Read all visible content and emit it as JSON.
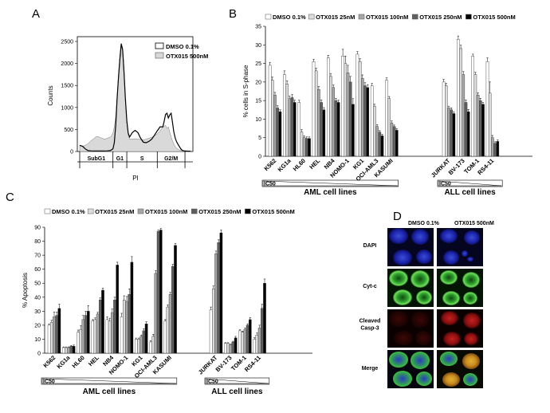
{
  "panels": {
    "a": "A",
    "b": "B",
    "c": "C",
    "d": "D"
  },
  "colors": [
    "#ffffff",
    "#dcdcdc",
    "#a6a6a6",
    "#5f5f5f",
    "#000000"
  ],
  "chart_data": [
    {
      "id": "A",
      "type": "area",
      "ylabel": "Counts",
      "xlabel": "PI",
      "ylim": [
        0,
        2500
      ],
      "yticks": [
        "0",
        "500",
        "1000",
        "1500",
        "2000",
        "2500"
      ],
      "gates": [
        "SubG1",
        "G1",
        "S",
        "G2/M"
      ],
      "series": [
        {
          "name": "DMSO 0.1%",
          "style": "line",
          "points": [
            [
              0,
              140
            ],
            [
              2,
              120
            ],
            [
              4,
              60
            ],
            [
              6,
              20
            ],
            [
              8,
              15
            ],
            [
              12,
              12
            ],
            [
              16,
              12
            ],
            [
              20,
              14
            ],
            [
              22,
              20
            ],
            [
              24,
              60
            ],
            [
              25,
              200
            ],
            [
              26,
              600
            ],
            [
              27,
              1200
            ],
            [
              28,
              1700
            ],
            [
              29,
              2100
            ],
            [
              30,
              2450
            ],
            [
              31,
              2300
            ],
            [
              32,
              1800
            ],
            [
              33,
              1200
            ],
            [
              34,
              700
            ],
            [
              35,
              420
            ],
            [
              36,
              330
            ],
            [
              38,
              430
            ],
            [
              40,
              480
            ],
            [
              42,
              430
            ],
            [
              44,
              300
            ],
            [
              46,
              210
            ],
            [
              48,
              200
            ],
            [
              50,
              230
            ],
            [
              52,
              280
            ],
            [
              54,
              370
            ],
            [
              56,
              470
            ],
            [
              58,
              560
            ],
            [
              60,
              560
            ],
            [
              61,
              690
            ],
            [
              62,
              840
            ],
            [
              63,
              870
            ],
            [
              64,
              760
            ],
            [
              65,
              830
            ],
            [
              66,
              870
            ],
            [
              67,
              660
            ],
            [
              68,
              440
            ],
            [
              69,
              300
            ],
            [
              70,
              220
            ],
            [
              71,
              160
            ],
            [
              72,
              110
            ],
            [
              73,
              60
            ],
            [
              74,
              25
            ],
            [
              76,
              10
            ],
            [
              80,
              5
            ]
          ]
        },
        {
          "name": "OTX015 500nM",
          "style": "fill",
          "points": [
            [
              0,
              130
            ],
            [
              2,
              120
            ],
            [
              4,
              140
            ],
            [
              6,
              180
            ],
            [
              8,
              240
            ],
            [
              10,
              290
            ],
            [
              12,
              340
            ],
            [
              14,
              330
            ],
            [
              16,
              300
            ],
            [
              18,
              280
            ],
            [
              20,
              300
            ],
            [
              22,
              330
            ],
            [
              23,
              360
            ],
            [
              24,
              420
            ],
            [
              25,
              560
            ],
            [
              26,
              800
            ],
            [
              27,
              1250
            ],
            [
              28,
              1750
            ],
            [
              29,
              2200
            ],
            [
              30,
              2450
            ],
            [
              31,
              2350
            ],
            [
              32,
              1900
            ],
            [
              33,
              1200
            ],
            [
              34,
              650
            ],
            [
              35,
              380
            ],
            [
              36,
              280
            ],
            [
              38,
              280
            ],
            [
              40,
              290
            ],
            [
              42,
              280
            ],
            [
              44,
              270
            ],
            [
              46,
              265
            ],
            [
              48,
              280
            ],
            [
              50,
              300
            ],
            [
              52,
              320
            ],
            [
              54,
              360
            ],
            [
              56,
              400
            ],
            [
              58,
              470
            ],
            [
              60,
              560
            ],
            [
              62,
              590
            ],
            [
              63,
              530
            ],
            [
              64,
              560
            ],
            [
              65,
              440
            ],
            [
              66,
              330
            ],
            [
              67,
              240
            ],
            [
              68,
              170
            ],
            [
              69,
              110
            ],
            [
              70,
              70
            ],
            [
              72,
              30
            ],
            [
              74,
              12
            ],
            [
              76,
              6
            ],
            [
              80,
              2
            ]
          ]
        }
      ]
    },
    {
      "id": "B",
      "type": "bar",
      "ylabel": "% cells in S-phase",
      "ylim": [
        0,
        35
      ],
      "yticks": [
        "0",
        "5",
        "10",
        "15",
        "20",
        "25",
        "30",
        "35"
      ],
      "legend": [
        "DMSO 0.1%",
        "OTX015 25nM",
        "OTX015 100nM",
        "OTX015 250nM",
        "OTX015 500nM"
      ],
      "groups": [
        "AML cell lines",
        "ALL cell lines"
      ],
      "ic50": "IC50",
      "categories": [
        "K562",
        "KG1a",
        "HL60",
        "HEL",
        "NB4",
        "NOMO-1",
        "KG1",
        "OCI-AML3",
        "KASUMI",
        "JURKAT",
        "BV-173",
        "TOM-1",
        "RS4-11"
      ],
      "values": [
        [
          24.5,
          20.5,
          16.5,
          13.0,
          12.0
        ],
        [
          22.0,
          19.5,
          15.5,
          15.8,
          14.5
        ],
        [
          14.5,
          6.5,
          5.0,
          4.8,
          4.8
        ],
        [
          25.5,
          23.0,
          18.0,
          14.5,
          12.5
        ],
        [
          26.5,
          21.5,
          18.5,
          15.0,
          14.5
        ],
        [
          27.0,
          25.0,
          22.5,
          20.0,
          14.0
        ],
        [
          27.5,
          25.5,
          21.0,
          19.0,
          18.5
        ],
        [
          19.0,
          13.5,
          8.0,
          6.5,
          5.5
        ],
        [
          20.5,
          15.5,
          9.0,
          8.0,
          7.0
        ],
        [
          20.0,
          19.0,
          13.0,
          12.5,
          11.5
        ],
        [
          31.5,
          29.0,
          22.0,
          14.5,
          12.0
        ],
        [
          27.0,
          22.0,
          16.5,
          15.0,
          14.0
        ],
        [
          25.5,
          17.0,
          5.0,
          3.5,
          4.0
        ]
      ],
      "errors": [
        [
          0.8,
          0.8,
          0.7,
          0.6,
          0.5
        ],
        [
          1.0,
          0.8,
          0.7,
          0.8,
          0.6
        ],
        [
          0.6,
          0.7,
          0.5,
          0.4,
          0.4
        ],
        [
          0.6,
          0.7,
          0.8,
          0.7,
          0.6
        ],
        [
          0.7,
          0.8,
          0.7,
          0.6,
          0.6
        ],
        [
          1.8,
          2.0,
          2.0,
          1.5,
          1.5
        ],
        [
          0.7,
          0.8,
          0.9,
          0.8,
          0.8
        ],
        [
          0.6,
          0.5,
          0.5,
          0.4,
          0.4
        ],
        [
          0.6,
          0.6,
          0.5,
          0.4,
          0.4
        ],
        [
          0.7,
          0.6,
          0.5,
          0.5,
          0.5
        ],
        [
          0.9,
          0.9,
          0.8,
          0.7,
          0.6
        ],
        [
          0.5,
          0.6,
          0.6,
          0.6,
          0.5
        ],
        [
          1.0,
          3.0,
          0.6,
          0.4,
          0.4
        ]
      ]
    },
    {
      "id": "C",
      "type": "bar",
      "ylabel": "% Apoptosis",
      "ylim": [
        0,
        90
      ],
      "yticks": [
        "0",
        "10",
        "20",
        "30",
        "40",
        "50",
        "60",
        "70",
        "80",
        "90"
      ],
      "legend": [
        "DMSO 0.1%",
        "OTX015 25nM",
        "OTX015 100nM",
        "OTX015 250nM",
        "OTX015 500nM"
      ],
      "groups": [
        "AML cell lines",
        "ALL cell lines"
      ],
      "ic50": "IC50",
      "categories": [
        "K562",
        "KG1a",
        "HL60",
        "HEL",
        "NB4",
        "NOMO-1",
        "KG1",
        "OCI-AML3",
        "KASUMI",
        "JURKAT",
        "BV-173",
        "TOM-1",
        "RS4-11"
      ],
      "values": [
        [
          20,
          22,
          26,
          27,
          32
        ],
        [
          4,
          4,
          4,
          5,
          5
        ],
        [
          15,
          17,
          24,
          27,
          30
        ],
        [
          23,
          24,
          28,
          38,
          45
        ],
        [
          24,
          23,
          29,
          38,
          63
        ],
        [
          26,
          38,
          37,
          42,
          65
        ],
        [
          10,
          10,
          12,
          16,
          21
        ],
        [
          8,
          12,
          57,
          87,
          88
        ],
        [
          23,
          33,
          42,
          62,
          77
        ],
        [
          31,
          46,
          71,
          79,
          86
        ],
        [
          7,
          7,
          6,
          8,
          11
        ],
        [
          16,
          15,
          17,
          20,
          24
        ],
        [
          10,
          13,
          18,
          32,
          50
        ]
      ],
      "errors": [
        [
          1.0,
          1.5,
          3.5,
          2.5,
          3.0
        ],
        [
          0.5,
          0.5,
          0.5,
          0.5,
          0.8
        ],
        [
          1.5,
          2.5,
          3.0,
          3.0,
          4.0
        ],
        [
          1.0,
          1.2,
          1.2,
          1.5,
          1.5
        ],
        [
          2.0,
          2.0,
          2.5,
          2.0,
          2.0
        ],
        [
          2.5,
          3.0,
          3.5,
          4.0,
          4.0
        ],
        [
          0.8,
          0.8,
          1.0,
          1.5,
          1.5
        ],
        [
          1.0,
          1.5,
          2.0,
          1.0,
          1.0
        ],
        [
          1.0,
          1.5,
          1.5,
          1.5,
          1.5
        ],
        [
          2.0,
          2.0,
          2.0,
          2.0,
          2.0
        ],
        [
          0.5,
          0.5,
          0.5,
          0.5,
          1.0
        ],
        [
          0.8,
          0.8,
          1.0,
          1.0,
          1.5
        ],
        [
          1.0,
          1.5,
          2.0,
          3.0,
          3.0
        ]
      ]
    }
  ],
  "microscopy": {
    "columns": [
      "DMSO 0.1%",
      "OTX015 500nM"
    ],
    "rows": [
      "DAPI",
      "Cyt-c",
      "Cleaved\nCasp-3",
      "Merge"
    ],
    "row_lines": [
      [
        "DAPI"
      ],
      [
        "Cyt-c"
      ],
      [
        "Cleaved",
        "Casp-3"
      ],
      [
        "Merge"
      ]
    ]
  }
}
